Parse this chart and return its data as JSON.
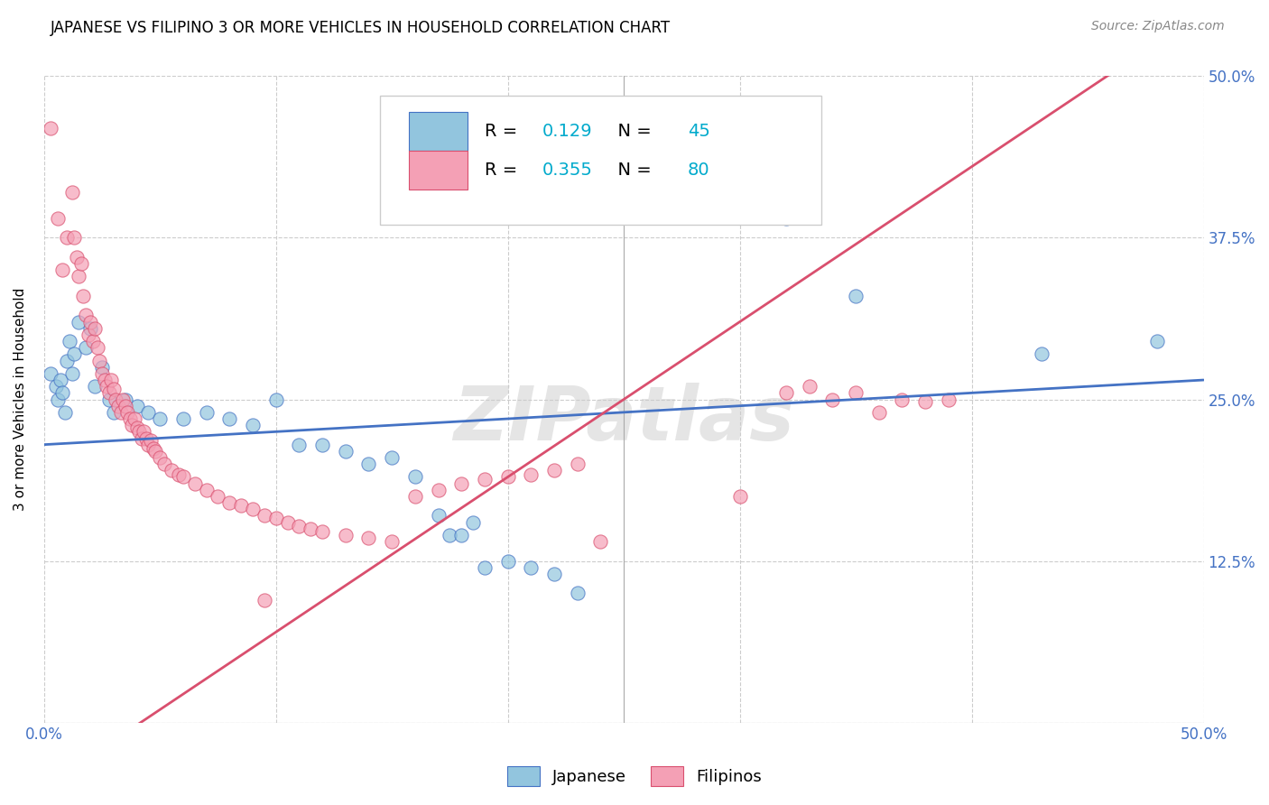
{
  "title": "JAPANESE VS FILIPINO 3 OR MORE VEHICLES IN HOUSEHOLD CORRELATION CHART",
  "source": "Source: ZipAtlas.com",
  "ylabel": "3 or more Vehicles in Household",
  "x_min": 0.0,
  "x_max": 0.5,
  "y_min": 0.0,
  "y_max": 0.5,
  "y_ticks": [
    0.0,
    0.125,
    0.25,
    0.375,
    0.5
  ],
  "y_tick_labels_right": [
    "",
    "12.5%",
    "25.0%",
    "37.5%",
    "50.0%"
  ],
  "color_japanese": "#92c5de",
  "color_filipino": "#f4a0b5",
  "trendline_japanese_color": "#4472c4",
  "trendline_filipino_color": "#d94f6e",
  "watermark": "ZIPatlas",
  "japanese_points": [
    [
      0.003,
      0.27
    ],
    [
      0.005,
      0.26
    ],
    [
      0.006,
      0.25
    ],
    [
      0.007,
      0.265
    ],
    [
      0.008,
      0.255
    ],
    [
      0.009,
      0.24
    ],
    [
      0.01,
      0.28
    ],
    [
      0.011,
      0.295
    ],
    [
      0.012,
      0.27
    ],
    [
      0.013,
      0.285
    ],
    [
      0.015,
      0.31
    ],
    [
      0.018,
      0.29
    ],
    [
      0.02,
      0.305
    ],
    [
      0.022,
      0.26
    ],
    [
      0.025,
      0.275
    ],
    [
      0.028,
      0.25
    ],
    [
      0.03,
      0.24
    ],
    [
      0.035,
      0.25
    ],
    [
      0.04,
      0.245
    ],
    [
      0.045,
      0.24
    ],
    [
      0.05,
      0.235
    ],
    [
      0.06,
      0.235
    ],
    [
      0.07,
      0.24
    ],
    [
      0.08,
      0.235
    ],
    [
      0.09,
      0.23
    ],
    [
      0.1,
      0.25
    ],
    [
      0.11,
      0.215
    ],
    [
      0.12,
      0.215
    ],
    [
      0.13,
      0.21
    ],
    [
      0.14,
      0.2
    ],
    [
      0.15,
      0.205
    ],
    [
      0.16,
      0.19
    ],
    [
      0.17,
      0.16
    ],
    [
      0.175,
      0.145
    ],
    [
      0.18,
      0.145
    ],
    [
      0.185,
      0.155
    ],
    [
      0.19,
      0.12
    ],
    [
      0.2,
      0.125
    ],
    [
      0.21,
      0.12
    ],
    [
      0.22,
      0.115
    ],
    [
      0.23,
      0.1
    ],
    [
      0.32,
      0.39
    ],
    [
      0.35,
      0.33
    ],
    [
      0.43,
      0.285
    ],
    [
      0.48,
      0.295
    ]
  ],
  "filipino_points": [
    [
      0.003,
      0.46
    ],
    [
      0.006,
      0.39
    ],
    [
      0.008,
      0.35
    ],
    [
      0.01,
      0.375
    ],
    [
      0.012,
      0.41
    ],
    [
      0.013,
      0.375
    ],
    [
      0.014,
      0.36
    ],
    [
      0.015,
      0.345
    ],
    [
      0.016,
      0.355
    ],
    [
      0.017,
      0.33
    ],
    [
      0.018,
      0.315
    ],
    [
      0.019,
      0.3
    ],
    [
      0.02,
      0.31
    ],
    [
      0.021,
      0.295
    ],
    [
      0.022,
      0.305
    ],
    [
      0.023,
      0.29
    ],
    [
      0.024,
      0.28
    ],
    [
      0.025,
      0.27
    ],
    [
      0.026,
      0.265
    ],
    [
      0.027,
      0.26
    ],
    [
      0.028,
      0.255
    ],
    [
      0.029,
      0.265
    ],
    [
      0.03,
      0.258
    ],
    [
      0.031,
      0.25
    ],
    [
      0.032,
      0.245
    ],
    [
      0.033,
      0.24
    ],
    [
      0.034,
      0.25
    ],
    [
      0.035,
      0.245
    ],
    [
      0.036,
      0.24
    ],
    [
      0.037,
      0.235
    ],
    [
      0.038,
      0.23
    ],
    [
      0.039,
      0.235
    ],
    [
      0.04,
      0.228
    ],
    [
      0.041,
      0.225
    ],
    [
      0.042,
      0.22
    ],
    [
      0.043,
      0.225
    ],
    [
      0.044,
      0.22
    ],
    [
      0.045,
      0.215
    ],
    [
      0.046,
      0.218
    ],
    [
      0.047,
      0.212
    ],
    [
      0.048,
      0.21
    ],
    [
      0.05,
      0.205
    ],
    [
      0.052,
      0.2
    ],
    [
      0.055,
      0.195
    ],
    [
      0.058,
      0.192
    ],
    [
      0.06,
      0.19
    ],
    [
      0.065,
      0.185
    ],
    [
      0.07,
      0.18
    ],
    [
      0.075,
      0.175
    ],
    [
      0.08,
      0.17
    ],
    [
      0.085,
      0.168
    ],
    [
      0.09,
      0.165
    ],
    [
      0.095,
      0.16
    ],
    [
      0.1,
      0.158
    ],
    [
      0.105,
      0.155
    ],
    [
      0.11,
      0.152
    ],
    [
      0.115,
      0.15
    ],
    [
      0.12,
      0.148
    ],
    [
      0.13,
      0.145
    ],
    [
      0.14,
      0.143
    ],
    [
      0.15,
      0.14
    ],
    [
      0.16,
      0.175
    ],
    [
      0.17,
      0.18
    ],
    [
      0.18,
      0.185
    ],
    [
      0.19,
      0.188
    ],
    [
      0.2,
      0.19
    ],
    [
      0.21,
      0.192
    ],
    [
      0.22,
      0.195
    ],
    [
      0.23,
      0.2
    ],
    [
      0.24,
      0.14
    ],
    [
      0.3,
      0.175
    ],
    [
      0.32,
      0.255
    ],
    [
      0.33,
      0.26
    ],
    [
      0.34,
      0.25
    ],
    [
      0.35,
      0.255
    ],
    [
      0.36,
      0.24
    ],
    [
      0.37,
      0.25
    ],
    [
      0.38,
      0.248
    ],
    [
      0.39,
      0.25
    ],
    [
      0.095,
      0.095
    ]
  ]
}
